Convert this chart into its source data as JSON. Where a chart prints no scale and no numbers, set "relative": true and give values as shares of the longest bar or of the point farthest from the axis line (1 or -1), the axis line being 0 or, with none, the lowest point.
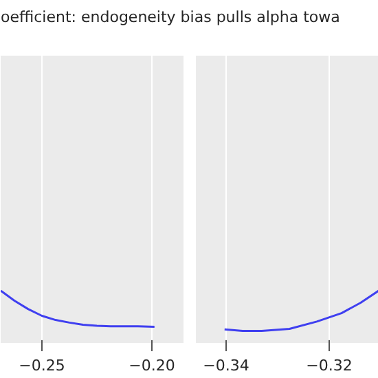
{
  "chart_data": [
    {
      "type": "line",
      "title": "oefficient: endogeneity bias pulls alpha towa",
      "relative": true,
      "color": "#3f3ff0",
      "x": [
        -0.2687,
        -0.2625,
        -0.2563,
        -0.25,
        -0.2438,
        -0.2375,
        -0.2313,
        -0.225,
        -0.2188,
        -0.2125,
        -0.2063,
        -0.1988
      ],
      "values": [
        1,
        0.81,
        0.65,
        0.52,
        0.44,
        0.39,
        0.35,
        0.33,
        0.32,
        0.32,
        0.32,
        0.31
      ],
      "xlim": [
        -0.26875,
        -0.1856
      ],
      "xticks": [
        {
          "value": -0.25,
          "label": "−0.25"
        },
        {
          "value": -0.2,
          "label": "−0.20"
        }
      ],
      "grid": "x",
      "tick_labels": "x"
    },
    {
      "type": "line",
      "relative": true,
      "color": "#3f3ff0",
      "x": [
        -0.3403,
        -0.3368,
        -0.3331,
        -0.3277,
        -0.3224,
        -0.3176,
        -0.3139,
        -0.3104
      ],
      "values": [
        0.26,
        0.23,
        0.23,
        0.27,
        0.41,
        0.57,
        0.77,
        1
      ],
      "xlim": [
        -0.34587,
        -0.3104
      ],
      "xticks": [
        {
          "value": -0.34,
          "label": "−0.34"
        },
        {
          "value": -0.32,
          "label": "−0.32"
        }
      ],
      "grid": "x",
      "tick_labels": "x"
    }
  ]
}
